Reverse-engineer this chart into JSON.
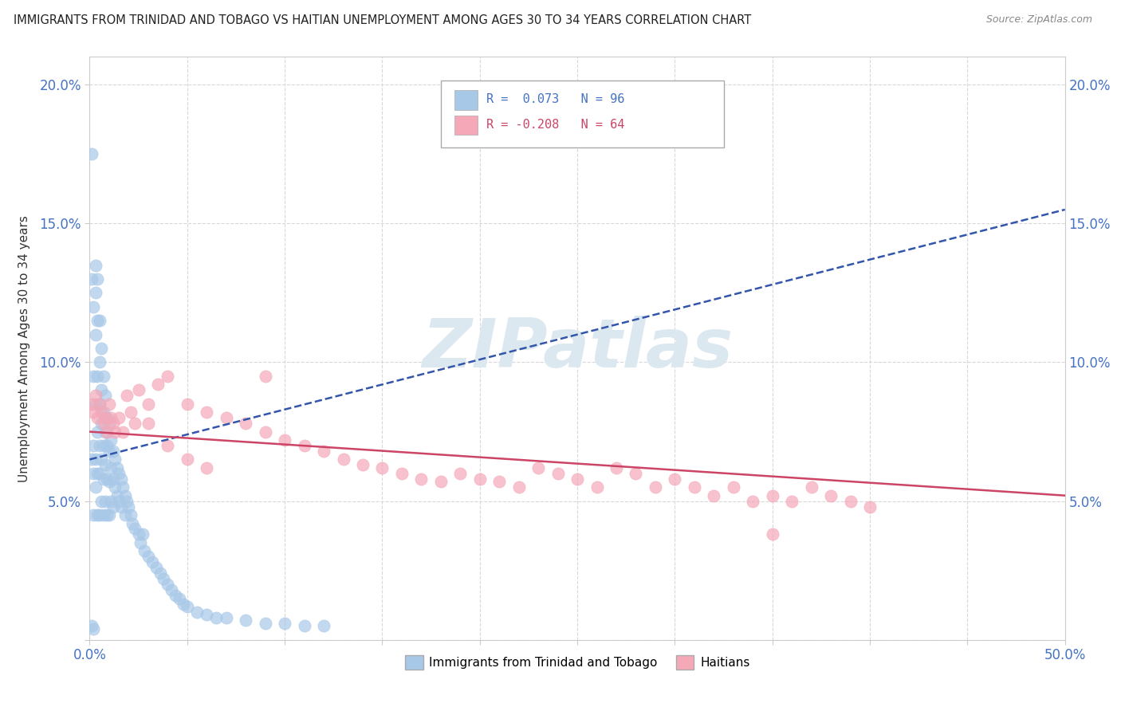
{
  "title": "IMMIGRANTS FROM TRINIDAD AND TOBAGO VS HAITIAN UNEMPLOYMENT AMONG AGES 30 TO 34 YEARS CORRELATION CHART",
  "source": "Source: ZipAtlas.com",
  "ylabel": "Unemployment Among Ages 30 to 34 years",
  "xlim": [
    0.0,
    0.5
  ],
  "ylim": [
    0.0,
    0.21
  ],
  "xticks": [
    0.0,
    0.05,
    0.1,
    0.15,
    0.2,
    0.25,
    0.3,
    0.35,
    0.4,
    0.45,
    0.5
  ],
  "yticks": [
    0.0,
    0.05,
    0.1,
    0.15,
    0.2
  ],
  "xtick_labels": [
    "0.0%",
    "",
    "",
    "",
    "",
    "",
    "",
    "",
    "",
    "",
    "50.0%"
  ],
  "ytick_labels": [
    "",
    "5.0%",
    "10.0%",
    "15.0%",
    "20.0%"
  ],
  "blue_R": 0.073,
  "blue_N": 96,
  "pink_R": -0.208,
  "pink_N": 64,
  "blue_color": "#a8c8e8",
  "pink_color": "#f4a8b8",
  "blue_trend_color": "#3355aa",
  "pink_trend_color": "#cc4466",
  "watermark": "ZIPatlas",
  "watermark_color": "#dce8f0",
  "legend_label_blue": "Immigrants from Trinidad and Tobago",
  "legend_label_pink": "Haitians",
  "background_color": "#ffffff",
  "blue_trend_start_y": 0.065,
  "blue_trend_end_y": 0.155,
  "pink_trend_start_y": 0.075,
  "pink_trend_end_y": 0.052,
  "blue_x": [
    0.001,
    0.001,
    0.001,
    0.002,
    0.002,
    0.002,
    0.002,
    0.002,
    0.003,
    0.003,
    0.003,
    0.003,
    0.003,
    0.003,
    0.004,
    0.004,
    0.004,
    0.004,
    0.004,
    0.004,
    0.005,
    0.005,
    0.005,
    0.005,
    0.005,
    0.005,
    0.006,
    0.006,
    0.006,
    0.006,
    0.006,
    0.007,
    0.007,
    0.007,
    0.007,
    0.007,
    0.008,
    0.008,
    0.008,
    0.008,
    0.009,
    0.009,
    0.009,
    0.009,
    0.01,
    0.01,
    0.01,
    0.01,
    0.011,
    0.011,
    0.011,
    0.012,
    0.012,
    0.012,
    0.013,
    0.013,
    0.014,
    0.014,
    0.015,
    0.015,
    0.016,
    0.016,
    0.017,
    0.018,
    0.018,
    0.019,
    0.02,
    0.021,
    0.022,
    0.023,
    0.025,
    0.026,
    0.027,
    0.028,
    0.03,
    0.032,
    0.034,
    0.036,
    0.038,
    0.04,
    0.042,
    0.044,
    0.046,
    0.048,
    0.05,
    0.055,
    0.06,
    0.065,
    0.07,
    0.08,
    0.09,
    0.1,
    0.11,
    0.12,
    0.001,
    0.002
  ],
  "blue_y": [
    0.175,
    0.13,
    0.065,
    0.12,
    0.095,
    0.07,
    0.06,
    0.045,
    0.135,
    0.125,
    0.11,
    0.085,
    0.065,
    0.055,
    0.13,
    0.115,
    0.095,
    0.075,
    0.06,
    0.045,
    0.115,
    0.1,
    0.085,
    0.07,
    0.06,
    0.045,
    0.105,
    0.09,
    0.078,
    0.065,
    0.05,
    0.095,
    0.082,
    0.07,
    0.058,
    0.045,
    0.088,
    0.075,
    0.063,
    0.05,
    0.08,
    0.07,
    0.058,
    0.045,
    0.078,
    0.068,
    0.057,
    0.045,
    0.072,
    0.062,
    0.05,
    0.068,
    0.058,
    0.048,
    0.065,
    0.055,
    0.062,
    0.052,
    0.06,
    0.05,
    0.058,
    0.048,
    0.055,
    0.052,
    0.045,
    0.05,
    0.048,
    0.045,
    0.042,
    0.04,
    0.038,
    0.035,
    0.038,
    0.032,
    0.03,
    0.028,
    0.026,
    0.024,
    0.022,
    0.02,
    0.018,
    0.016,
    0.015,
    0.013,
    0.012,
    0.01,
    0.009,
    0.008,
    0.008,
    0.007,
    0.006,
    0.006,
    0.005,
    0.005,
    0.005,
    0.004
  ],
  "pink_x": [
    0.001,
    0.002,
    0.003,
    0.004,
    0.005,
    0.006,
    0.007,
    0.008,
    0.009,
    0.01,
    0.011,
    0.012,
    0.013,
    0.015,
    0.017,
    0.019,
    0.021,
    0.023,
    0.025,
    0.03,
    0.035,
    0.04,
    0.05,
    0.06,
    0.07,
    0.08,
    0.09,
    0.1,
    0.11,
    0.12,
    0.13,
    0.14,
    0.15,
    0.16,
    0.17,
    0.18,
    0.19,
    0.2,
    0.21,
    0.22,
    0.23,
    0.24,
    0.25,
    0.26,
    0.27,
    0.28,
    0.29,
    0.3,
    0.31,
    0.32,
    0.33,
    0.34,
    0.35,
    0.36,
    0.37,
    0.38,
    0.39,
    0.4,
    0.03,
    0.04,
    0.05,
    0.06,
    0.09,
    0.35
  ],
  "pink_y": [
    0.085,
    0.082,
    0.088,
    0.08,
    0.085,
    0.082,
    0.078,
    0.08,
    0.075,
    0.085,
    0.08,
    0.078,
    0.075,
    0.08,
    0.075,
    0.088,
    0.082,
    0.078,
    0.09,
    0.085,
    0.092,
    0.095,
    0.085,
    0.082,
    0.08,
    0.078,
    0.075,
    0.072,
    0.07,
    0.068,
    0.065,
    0.063,
    0.062,
    0.06,
    0.058,
    0.057,
    0.06,
    0.058,
    0.057,
    0.055,
    0.062,
    0.06,
    0.058,
    0.055,
    0.062,
    0.06,
    0.055,
    0.058,
    0.055,
    0.052,
    0.055,
    0.05,
    0.052,
    0.05,
    0.055,
    0.052,
    0.05,
    0.048,
    0.078,
    0.07,
    0.065,
    0.062,
    0.095,
    0.038
  ]
}
